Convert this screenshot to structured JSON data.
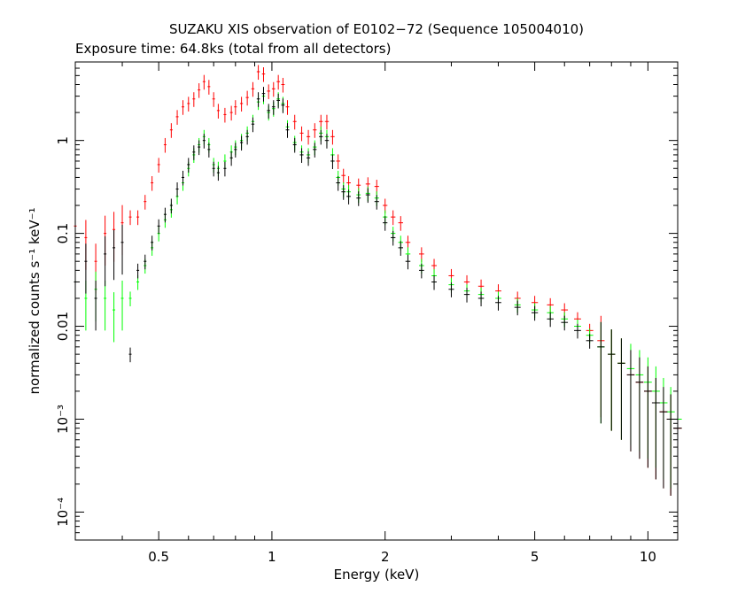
{
  "chart_data": {
    "type": "scatter",
    "title": "SUZAKU XIS observation of E0102−72 (Sequence 105004010)",
    "subtitle": "Exposure time: 64.8ks (total from all detectors)",
    "xlabel": "Energy (keV)",
    "ylabel": "normalized counts s⁻¹ keV⁻¹",
    "x_scale": "log",
    "y_scale": "log",
    "xlim": [
      0.3,
      12
    ],
    "ylim": [
      5e-05,
      7
    ],
    "grid": false,
    "x_ticks": [
      {
        "value": 0.5,
        "label": "0.5"
      },
      {
        "value": 1,
        "label": "1"
      },
      {
        "value": 2,
        "label": "2"
      },
      {
        "value": 5,
        "label": "5"
      },
      {
        "value": 10,
        "label": "10"
      }
    ],
    "y_ticks": [
      {
        "value": 1,
        "label": "1"
      },
      {
        "value": 0.1,
        "label": "0.1"
      },
      {
        "value": 0.01,
        "label": "0.01"
      },
      {
        "value": 0.001,
        "label": "10⁻³"
      },
      {
        "value": 0.0001,
        "label": "10⁻⁴"
      }
    ],
    "series": [
      {
        "color": "#ff0000",
        "points": [
          [
            0.3,
            0.12
          ],
          [
            0.32,
            0.09
          ],
          [
            0.34,
            0.05
          ],
          [
            0.36,
            0.1
          ],
          [
            0.38,
            0.11
          ],
          [
            0.4,
            0.13
          ],
          [
            0.42,
            0.15
          ],
          [
            0.44,
            0.15
          ],
          [
            0.46,
            0.22
          ],
          [
            0.48,
            0.35
          ],
          [
            0.5,
            0.55
          ],
          [
            0.52,
            0.9
          ],
          [
            0.54,
            1.3
          ],
          [
            0.56,
            1.8
          ],
          [
            0.58,
            2.3
          ],
          [
            0.6,
            2.5
          ],
          [
            0.62,
            2.8
          ],
          [
            0.64,
            3.5
          ],
          [
            0.66,
            4.3
          ],
          [
            0.68,
            3.8
          ],
          [
            0.7,
            2.8
          ],
          [
            0.72,
            2.1
          ],
          [
            0.75,
            1.9
          ],
          [
            0.78,
            2.0
          ],
          [
            0.8,
            2.3
          ],
          [
            0.83,
            2.5
          ],
          [
            0.86,
            2.9
          ],
          [
            0.89,
            3.6
          ],
          [
            0.92,
            5.5
          ],
          [
            0.95,
            5.2
          ],
          [
            0.98,
            3.4
          ],
          [
            1.01,
            3.6
          ],
          [
            1.04,
            4.3
          ],
          [
            1.07,
            4.0
          ],
          [
            1.1,
            2.3
          ],
          [
            1.15,
            1.6
          ],
          [
            1.2,
            1.2
          ],
          [
            1.25,
            1.1
          ],
          [
            1.3,
            1.3
          ],
          [
            1.35,
            1.6
          ],
          [
            1.4,
            1.6
          ],
          [
            1.45,
            1.1
          ],
          [
            1.5,
            0.6
          ],
          [
            1.55,
            0.42
          ],
          [
            1.6,
            0.35
          ],
          [
            1.7,
            0.33
          ],
          [
            1.8,
            0.34
          ],
          [
            1.9,
            0.32
          ],
          [
            2.0,
            0.2
          ],
          [
            2.1,
            0.15
          ],
          [
            2.2,
            0.13
          ],
          [
            2.3,
            0.08
          ],
          [
            2.5,
            0.06
          ],
          [
            2.7,
            0.045
          ],
          [
            3.0,
            0.035
          ],
          [
            3.3,
            0.03
          ],
          [
            3.6,
            0.027
          ],
          [
            4.0,
            0.024
          ],
          [
            4.5,
            0.02
          ],
          [
            5.0,
            0.018
          ],
          [
            5.5,
            0.017
          ],
          [
            6.0,
            0.015
          ],
          [
            6.5,
            0.012
          ],
          [
            7.0,
            0.009
          ],
          [
            7.5,
            0.007
          ],
          [
            8.0,
            0.005
          ],
          [
            8.5,
            0.004
          ],
          [
            9.0,
            0.003
          ],
          [
            9.5,
            0.0025
          ],
          [
            10.0,
            0.002
          ],
          [
            10.5,
            0.0015
          ],
          [
            11.0,
            0.0012
          ],
          [
            11.5,
            0.001
          ],
          [
            12.0,
            0.0008
          ]
        ]
      },
      {
        "color": "#00ff00",
        "points": [
          [
            0.3,
            0.03
          ],
          [
            0.32,
            0.02
          ],
          [
            0.34,
            0.025
          ],
          [
            0.36,
            0.02
          ],
          [
            0.38,
            0.015
          ],
          [
            0.4,
            0.02
          ],
          [
            0.42,
            0.02
          ],
          [
            0.44,
            0.03
          ],
          [
            0.46,
            0.045
          ],
          [
            0.48,
            0.07
          ],
          [
            0.5,
            0.1
          ],
          [
            0.52,
            0.14
          ],
          [
            0.54,
            0.18
          ],
          [
            0.56,
            0.25
          ],
          [
            0.58,
            0.35
          ],
          [
            0.6,
            0.5
          ],
          [
            0.62,
            0.7
          ],
          [
            0.64,
            0.9
          ],
          [
            0.66,
            1.1
          ],
          [
            0.68,
            0.9
          ],
          [
            0.7,
            0.55
          ],
          [
            0.72,
            0.5
          ],
          [
            0.75,
            0.6
          ],
          [
            0.78,
            0.75
          ],
          [
            0.8,
            0.85
          ],
          [
            0.83,
            1.0
          ],
          [
            0.86,
            1.2
          ],
          [
            0.89,
            1.6
          ],
          [
            0.92,
            2.6
          ],
          [
            0.95,
            3.0
          ],
          [
            0.98,
            2.0
          ],
          [
            1.01,
            2.2
          ],
          [
            1.04,
            2.8
          ],
          [
            1.07,
            2.5
          ],
          [
            1.1,
            1.4
          ],
          [
            1.15,
            0.95
          ],
          [
            1.2,
            0.75
          ],
          [
            1.25,
            0.7
          ],
          [
            1.3,
            0.85
          ],
          [
            1.35,
            1.2
          ],
          [
            1.4,
            1.1
          ],
          [
            1.45,
            0.7
          ],
          [
            1.5,
            0.4
          ],
          [
            1.55,
            0.3
          ],
          [
            1.6,
            0.28
          ],
          [
            1.7,
            0.26
          ],
          [
            1.8,
            0.27
          ],
          [
            1.9,
            0.24
          ],
          [
            2.0,
            0.15
          ],
          [
            2.1,
            0.1
          ],
          [
            2.2,
            0.08
          ],
          [
            2.3,
            0.06
          ],
          [
            2.5,
            0.045
          ],
          [
            2.7,
            0.035
          ],
          [
            3.0,
            0.028
          ],
          [
            3.3,
            0.024
          ],
          [
            3.6,
            0.022
          ],
          [
            4.0,
            0.02
          ],
          [
            4.5,
            0.017
          ],
          [
            5.0,
            0.015
          ],
          [
            5.5,
            0.014
          ],
          [
            6.0,
            0.012
          ],
          [
            6.5,
            0.01
          ],
          [
            7.0,
            0.008
          ],
          [
            7.5,
            0.006
          ],
          [
            8.0,
            0.005
          ],
          [
            8.5,
            0.004
          ],
          [
            9.0,
            0.0035
          ],
          [
            9.5,
            0.003
          ],
          [
            10.0,
            0.0025
          ],
          [
            10.5,
            0.002
          ],
          [
            11.0,
            0.0015
          ],
          [
            11.5,
            0.0012
          ],
          [
            12.0,
            0.001
          ]
        ]
      },
      {
        "color": "#000000",
        "points": [
          [
            0.3,
            0.03
          ],
          [
            0.32,
            0.05
          ],
          [
            0.34,
            0.02
          ],
          [
            0.36,
            0.06
          ],
          [
            0.38,
            0.07
          ],
          [
            0.4,
            0.08
          ],
          [
            0.42,
            0.005
          ],
          [
            0.44,
            0.04
          ],
          [
            0.46,
            0.05
          ],
          [
            0.48,
            0.08
          ],
          [
            0.5,
            0.12
          ],
          [
            0.52,
            0.16
          ],
          [
            0.54,
            0.2
          ],
          [
            0.56,
            0.3
          ],
          [
            0.58,
            0.4
          ],
          [
            0.6,
            0.55
          ],
          [
            0.62,
            0.75
          ],
          [
            0.64,
            0.85
          ],
          [
            0.66,
            1.0
          ],
          [
            0.68,
            0.8
          ],
          [
            0.7,
            0.5
          ],
          [
            0.72,
            0.45
          ],
          [
            0.75,
            0.5
          ],
          [
            0.78,
            0.65
          ],
          [
            0.8,
            0.8
          ],
          [
            0.83,
            0.95
          ],
          [
            0.86,
            1.1
          ],
          [
            0.89,
            1.5
          ],
          [
            0.92,
            2.8
          ],
          [
            0.95,
            3.2
          ],
          [
            0.98,
            2.1
          ],
          [
            1.01,
            2.3
          ],
          [
            1.04,
            2.7
          ],
          [
            1.07,
            2.4
          ],
          [
            1.1,
            1.3
          ],
          [
            1.15,
            0.9
          ],
          [
            1.2,
            0.7
          ],
          [
            1.25,
            0.65
          ],
          [
            1.3,
            0.8
          ],
          [
            1.35,
            1.1
          ],
          [
            1.4,
            1.0
          ],
          [
            1.45,
            0.6
          ],
          [
            1.5,
            0.35
          ],
          [
            1.55,
            0.28
          ],
          [
            1.6,
            0.25
          ],
          [
            1.7,
            0.24
          ],
          [
            1.8,
            0.26
          ],
          [
            1.9,
            0.22
          ],
          [
            2.0,
            0.13
          ],
          [
            2.1,
            0.09
          ],
          [
            2.2,
            0.07
          ],
          [
            2.3,
            0.05
          ],
          [
            2.5,
            0.04
          ],
          [
            2.7,
            0.03
          ],
          [
            3.0,
            0.025
          ],
          [
            3.3,
            0.022
          ],
          [
            3.6,
            0.02
          ],
          [
            4.0,
            0.018
          ],
          [
            4.5,
            0.016
          ],
          [
            5.0,
            0.014
          ],
          [
            5.5,
            0.012
          ],
          [
            6.0,
            0.011
          ],
          [
            6.5,
            0.009
          ],
          [
            7.0,
            0.007
          ],
          [
            7.5,
            0.006
          ],
          [
            8.0,
            0.005
          ],
          [
            8.5,
            0.004
          ],
          [
            9.0,
            0.003
          ],
          [
            9.5,
            0.0025
          ],
          [
            10.0,
            0.002
          ],
          [
            10.5,
            0.0015
          ],
          [
            11.0,
            0.0012
          ],
          [
            11.5,
            0.001
          ],
          [
            12.0,
            0.0008
          ]
        ]
      }
    ]
  }
}
